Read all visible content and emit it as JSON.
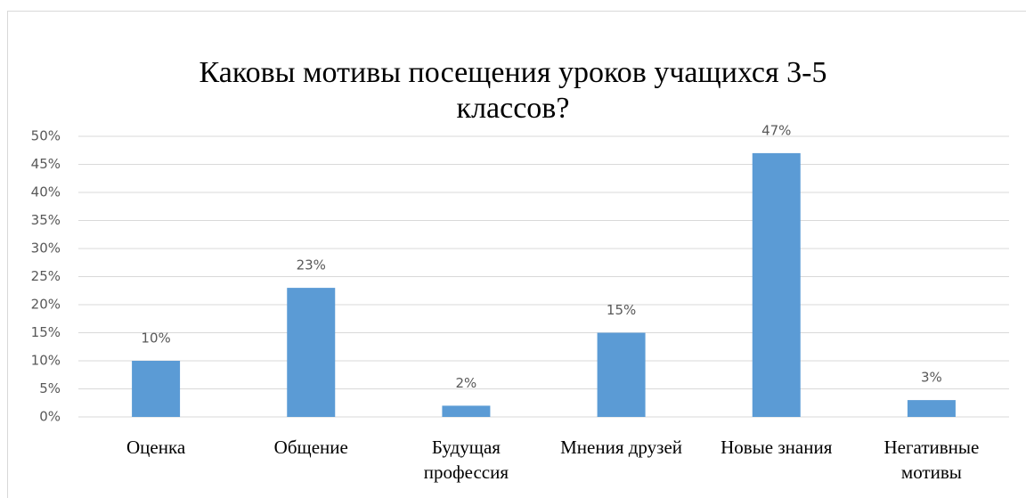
{
  "chart_data": {
    "type": "bar",
    "title": "Каковы мотивы посещения уроков учащихся 3-5 классов?",
    "categories": [
      "Оценка",
      "Общение",
      "Будущая профессия",
      "Мнения друзей",
      "Новые знания",
      "Негативные мотивы"
    ],
    "values": [
      10,
      23,
      2,
      15,
      47,
      3
    ],
    "value_labels": [
      "10%",
      "23%",
      "2%",
      "15%",
      "47%",
      "3%"
    ],
    "color": "#5b9bd5",
    "ylim": [
      0,
      50
    ],
    "yticks": [
      {
        "value": 0,
        "label": "0%"
      },
      {
        "value": 5,
        "label": "5%"
      },
      {
        "value": 10,
        "label": "10%"
      },
      {
        "value": 15,
        "label": "15%"
      },
      {
        "value": 20,
        "label": "20%"
      },
      {
        "value": 25,
        "label": "25%"
      },
      {
        "value": 30,
        "label": "30%"
      },
      {
        "value": 35,
        "label": "35%"
      },
      {
        "value": 40,
        "label": "40%"
      },
      {
        "value": 45,
        "label": "45%"
      },
      {
        "value": 50,
        "label": "50%"
      }
    ],
    "grid": true
  }
}
